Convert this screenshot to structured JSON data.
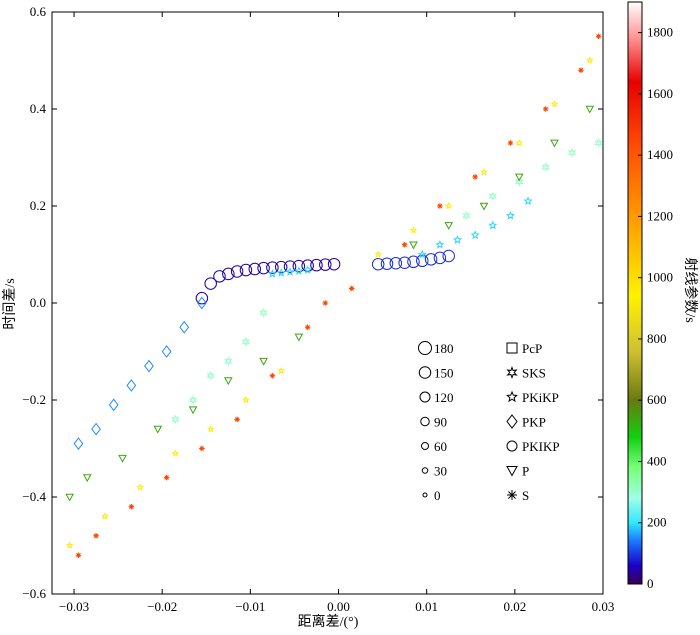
{
  "chart_data": {
    "type": "scatter",
    "xlabel": "距离差/(°)",
    "ylabel": "时间差/s",
    "colorbar_label": "射线参数/s",
    "xlim": [
      -0.0325,
      0.03
    ],
    "ylim": [
      -0.6,
      0.6
    ],
    "xticks": [
      -0.03,
      -0.02,
      -0.01,
      0.0,
      0.01,
      0.02,
      0.03
    ],
    "xtick_labels": [
      "−0.03",
      "−0.02",
      "−0.01",
      "0.00",
      "0.01",
      "0.02",
      "0.03"
    ],
    "yticks": [
      -0.6,
      -0.4,
      -0.2,
      0.0,
      0.2,
      0.4,
      0.6
    ],
    "ytick_labels": [
      "−0.6",
      "−0.4",
      "−0.2",
      "0.0",
      "0.2",
      "0.4",
      "0.6"
    ],
    "colorbar": {
      "range": [
        0,
        1900
      ],
      "ticks": [
        0,
        200,
        400,
        600,
        800,
        1000,
        1200,
        1400,
        1600,
        1800
      ],
      "tick_labels": [
        "0",
        "200",
        "400",
        "600",
        "800",
        "1000",
        "1200",
        "1400",
        "1600",
        "1800"
      ],
      "stops": [
        {
          "v": 0,
          "color": "#3a0050"
        },
        {
          "v": 60,
          "color": "#1a00c8"
        },
        {
          "v": 140,
          "color": "#1a78ff"
        },
        {
          "v": 200,
          "color": "#30e8ff"
        },
        {
          "v": 280,
          "color": "#a0ffe8"
        },
        {
          "v": 380,
          "color": "#78ff78"
        },
        {
          "v": 480,
          "color": "#10d010"
        },
        {
          "v": 600,
          "color": "#6a7a10"
        },
        {
          "v": 760,
          "color": "#d0c030"
        },
        {
          "v": 940,
          "color": "#fff200"
        },
        {
          "v": 1180,
          "color": "#ffa000"
        },
        {
          "v": 1420,
          "color": "#ff5000"
        },
        {
          "v": 1640,
          "color": "#e80000"
        },
        {
          "v": 1780,
          "color": "#ff9090"
        },
        {
          "v": 1900,
          "color": "#ffffff"
        }
      ]
    },
    "size_legend": [
      {
        "label": "180",
        "value": 180
      },
      {
        "label": "150",
        "value": 150
      },
      {
        "label": "120",
        "value": 120
      },
      {
        "label": "90",
        "value": 90
      },
      {
        "label": "60",
        "value": 60
      },
      {
        "label": "30",
        "value": 30
      },
      {
        "label": "0",
        "value": 0
      }
    ],
    "phase_legend": [
      {
        "label": "PcP",
        "marker": "square"
      },
      {
        "label": "SKS",
        "marker": "hexstar"
      },
      {
        "label": "PKiKP",
        "marker": "star"
      },
      {
        "label": "PKP",
        "marker": "diamond"
      },
      {
        "label": "PKIKP",
        "marker": "circle"
      },
      {
        "label": "P",
        "marker": "triangle-down"
      },
      {
        "label": "S",
        "marker": "asterisk"
      }
    ],
    "series": [
      {
        "name": "PKIKP",
        "marker": "circle",
        "ray_param": 40,
        "size": 150,
        "points": [
          [
            -0.0155,
            0.01
          ],
          [
            -0.0145,
            0.04
          ],
          [
            -0.0135,
            0.055
          ],
          [
            -0.0125,
            0.06
          ],
          [
            -0.0115,
            0.065
          ],
          [
            -0.0105,
            0.068
          ],
          [
            -0.0095,
            0.07
          ],
          [
            -0.0085,
            0.072
          ],
          [
            -0.0075,
            0.073
          ],
          [
            -0.0065,
            0.074
          ],
          [
            -0.0055,
            0.075
          ],
          [
            -0.0045,
            0.076
          ],
          [
            -0.0035,
            0.077
          ],
          [
            -0.0025,
            0.078
          ],
          [
            -0.0015,
            0.079
          ],
          [
            -0.0005,
            0.08
          ]
        ]
      },
      {
        "name": "PKIKP (+)",
        "marker": "circle",
        "ray_param": 90,
        "size": 150,
        "points": [
          [
            0.0045,
            0.08
          ],
          [
            0.0055,
            0.081
          ],
          [
            0.0065,
            0.082
          ],
          [
            0.0075,
            0.083
          ],
          [
            0.0085,
            0.085
          ],
          [
            0.0095,
            0.087
          ],
          [
            0.0105,
            0.09
          ],
          [
            0.0115,
            0.093
          ],
          [
            0.0125,
            0.097
          ]
        ]
      },
      {
        "name": "PKiKP",
        "marker": "star",
        "ray_param": 190,
        "size": 60,
        "points": [
          [
            -0.0075,
            0.06
          ],
          [
            -0.0065,
            0.062
          ],
          [
            -0.0055,
            0.064
          ],
          [
            -0.0045,
            0.066
          ],
          [
            -0.0035,
            0.068
          ],
          [
            0.0095,
            0.1
          ],
          [
            0.0115,
            0.12
          ],
          [
            0.0135,
            0.13
          ],
          [
            0.0155,
            0.14
          ],
          [
            0.0175,
            0.16
          ],
          [
            0.0195,
            0.18
          ],
          [
            0.0215,
            0.21
          ]
        ]
      },
      {
        "name": "PKP",
        "marker": "diamond",
        "ray_param": 150,
        "size": 90,
        "points": [
          [
            -0.0155,
            0.0
          ],
          [
            -0.0175,
            -0.05
          ],
          [
            -0.0195,
            -0.1
          ],
          [
            -0.0215,
            -0.13
          ],
          [
            -0.0235,
            -0.17
          ],
          [
            -0.0255,
            -0.21
          ],
          [
            -0.0275,
            -0.26
          ],
          [
            -0.0295,
            -0.29
          ]
        ]
      },
      {
        "name": "SKS",
        "marker": "hexstar",
        "ray_param": 310,
        "size": 60,
        "points": [
          [
            -0.0085,
            -0.02
          ],
          [
            -0.0105,
            -0.08
          ],
          [
            -0.0125,
            -0.12
          ],
          [
            -0.0145,
            -0.15
          ],
          [
            -0.0165,
            -0.2
          ],
          [
            -0.0185,
            -0.24
          ],
          [
            0.0145,
            0.18
          ],
          [
            0.0175,
            0.22
          ],
          [
            0.0205,
            0.25
          ],
          [
            0.0235,
            0.28
          ],
          [
            0.0265,
            0.31
          ],
          [
            0.0295,
            0.33
          ]
        ]
      },
      {
        "name": "P",
        "marker": "triangle-down",
        "ray_param": 540,
        "size": 60,
        "points": [
          [
            -0.0305,
            -0.4
          ],
          [
            -0.0285,
            -0.36
          ],
          [
            -0.0245,
            -0.32
          ],
          [
            -0.0205,
            -0.26
          ],
          [
            -0.0165,
            -0.22
          ],
          [
            -0.0125,
            -0.16
          ],
          [
            -0.0085,
            -0.12
          ],
          [
            -0.0045,
            -0.07
          ],
          [
            0.0085,
            0.12
          ],
          [
            0.0125,
            0.16
          ],
          [
            0.0165,
            0.2
          ],
          [
            0.0205,
            0.26
          ],
          [
            0.0245,
            0.33
          ],
          [
            0.0285,
            0.4
          ]
        ]
      },
      {
        "name": "S",
        "marker": "asterisk",
        "ray_param": 1450,
        "size": 30,
        "points": [
          [
            -0.0295,
            -0.52
          ],
          [
            -0.0275,
            -0.48
          ],
          [
            -0.0235,
            -0.42
          ],
          [
            -0.0195,
            -0.36
          ],
          [
            -0.0155,
            -0.3
          ],
          [
            -0.0115,
            -0.24
          ],
          [
            -0.0075,
            -0.15
          ],
          [
            -0.0035,
            -0.05
          ],
          [
            -0.0015,
            0.0
          ],
          [
            0.0015,
            0.03
          ],
          [
            0.0075,
            0.12
          ],
          [
            0.0115,
            0.2
          ],
          [
            0.0155,
            0.26
          ],
          [
            0.0195,
            0.33
          ],
          [
            0.0235,
            0.4
          ],
          [
            0.0275,
            0.48
          ],
          [
            0.0295,
            0.55
          ]
        ]
      },
      {
        "name": "P (yellow)",
        "marker": "star",
        "ray_param": 960,
        "size": 30,
        "points": [
          [
            -0.0305,
            -0.5
          ],
          [
            -0.0265,
            -0.44
          ],
          [
            -0.0225,
            -0.38
          ],
          [
            -0.0185,
            -0.31
          ],
          [
            -0.0145,
            -0.26
          ],
          [
            -0.0105,
            -0.2
          ],
          [
            -0.0065,
            -0.14
          ],
          [
            0.0045,
            0.1
          ],
          [
            0.0085,
            0.15
          ],
          [
            0.0125,
            0.2
          ],
          [
            0.0165,
            0.27
          ],
          [
            0.0205,
            0.33
          ],
          [
            0.0245,
            0.41
          ],
          [
            0.0285,
            0.5
          ]
        ]
      }
    ]
  }
}
